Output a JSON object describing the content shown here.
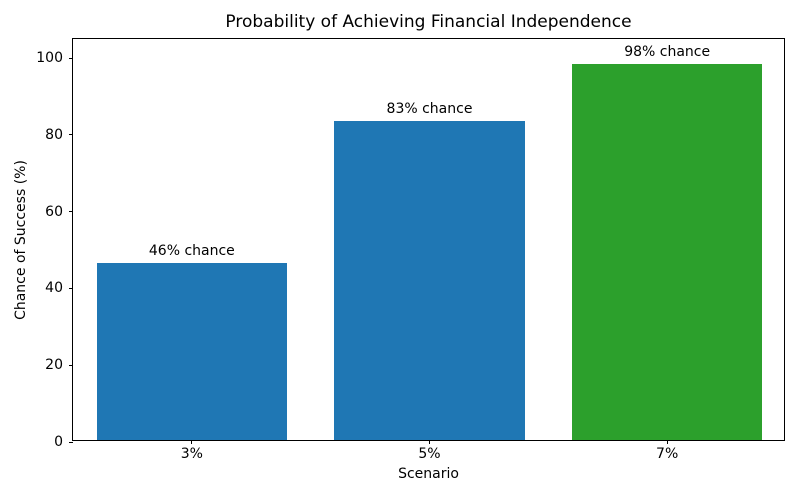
{
  "chart_data": {
    "type": "bar",
    "title": "Probability of Achieving Financial Independence",
    "xlabel": "Scenario",
    "ylabel": "Chance of Success (%)",
    "categories": [
      "3%",
      "5%",
      "7%"
    ],
    "values": [
      46,
      83,
      98
    ],
    "bar_labels": [
      "46% chance",
      "83% chance",
      "98% chance"
    ],
    "bar_colors": [
      "#1f77b4",
      "#1f77b4",
      "#2ca02c"
    ],
    "yticks": [
      0,
      20,
      40,
      60,
      80,
      100
    ],
    "ylim": [
      0,
      105
    ],
    "bar_width_fraction": 0.8,
    "grid": false,
    "legend": false,
    "background_color": "#ffffff",
    "text_color": "#000000"
  }
}
